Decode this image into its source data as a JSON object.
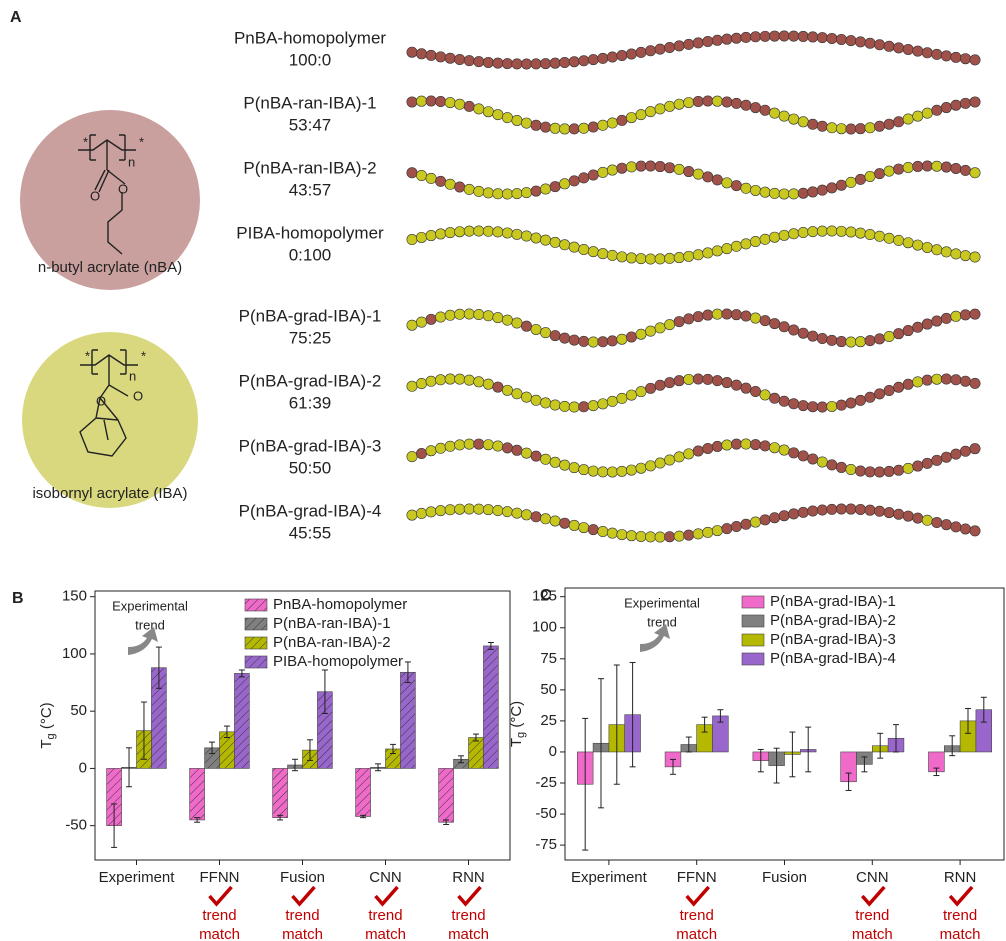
{
  "panel_a": {
    "panel_label": "A",
    "monomers": [
      {
        "name": "n-butyl acrylate (nBA)",
        "end_label": "*",
        "repeat_label": "n",
        "atoms": [
          "O",
          "O"
        ]
      },
      {
        "name": "isobornyl acrylate (IBA)",
        "end_label": "*",
        "repeat_label": "n",
        "atoms": [
          "O",
          "O"
        ]
      }
    ],
    "chains": [
      {
        "name": "PnBA-homopolymer",
        "ratio": "100:0"
      },
      {
        "name": "P(nBA-ran-IBA)-1",
        "ratio": "53:47"
      },
      {
        "name": "P(nBA-ran-IBA)-2",
        "ratio": "43:57"
      },
      {
        "name": "PIBA-homopolymer",
        "ratio": "0:100"
      },
      {
        "name": "P(nBA-grad-IBA)-1",
        "ratio": "75:25"
      },
      {
        "name": "P(nBA-grad-IBA)-2",
        "ratio": "61:39"
      },
      {
        "name": "P(nBA-grad-IBA)-3",
        "ratio": "50:50"
      },
      {
        "name": "P(nBA-grad-IBA)-4",
        "ratio": "45:55"
      }
    ]
  },
  "chart_data": [
    {
      "type": "bar",
      "panel_label": "B",
      "hatch": true,
      "legend": "upper right",
      "ylabel": {
        "main": "T",
        "sub": "g",
        "unit": " (°C)"
      },
      "annotation": [
        "Experimental",
        "trend"
      ],
      "categories": [
        "Experiment",
        "FFNN",
        "Fusion",
        "CNN",
        "RNN"
      ],
      "trend_labels": [
        null,
        [
          "trend",
          "match"
        ],
        [
          "trend",
          "match"
        ],
        [
          "trend",
          "match"
        ],
        [
          "trend",
          "match"
        ]
      ],
      "ylim": [
        -80,
        155
      ],
      "yticks": [
        -50,
        0,
        50,
        100,
        150
      ],
      "series": [
        {
          "name": "PnBA-homopolymer",
          "color": "#f06ac9",
          "values": [
            -50,
            -45,
            -43,
            -42,
            -47
          ],
          "errors": [
            19,
            2,
            2,
            1,
            2
          ]
        },
        {
          "name": "P(nBA-ran-IBA)-1",
          "color": "#808080",
          "values": [
            1,
            18,
            3,
            1,
            8
          ],
          "errors": [
            17,
            5,
            5,
            3,
            3
          ]
        },
        {
          "name": "P(nBA-ran-IBA)-2",
          "color": "#b5b800",
          "values": [
            33,
            32,
            16,
            17,
            27
          ],
          "errors": [
            25,
            5,
            9,
            4,
            3
          ]
        },
        {
          "name": "PIBA-homopolymer",
          "color": "#9966cc",
          "values": [
            88,
            83,
            67,
            84,
            107
          ],
          "errors": [
            18,
            3,
            19,
            9,
            3
          ]
        }
      ]
    },
    {
      "type": "bar",
      "panel_label": "C",
      "hatch": false,
      "legend": "upper right",
      "ylabel": {
        "main": "T",
        "sub": "g",
        "unit": " (°C)"
      },
      "annotation": [
        "Experimental",
        "trend"
      ],
      "categories": [
        "Experiment",
        "FFNN",
        "Fusion",
        "CNN",
        "RNN"
      ],
      "trend_labels": [
        null,
        [
          "trend",
          "match"
        ],
        null,
        [
          "trend",
          "match"
        ],
        [
          "trend",
          "match"
        ]
      ],
      "ylim": [
        -87,
        132
      ],
      "yticks": [
        -75,
        -50,
        -25,
        0,
        25,
        50,
        75,
        100,
        125
      ],
      "series": [
        {
          "name": "P(nBA-grad-IBA)-1",
          "color": "#f06ac9",
          "values": [
            -26,
            -12,
            -7,
            -24,
            -16
          ],
          "errors": [
            53,
            6,
            9,
            7,
            3
          ]
        },
        {
          "name": "P(nBA-grad-IBA)-2",
          "color": "#808080",
          "values": [
            7,
            6,
            -11,
            -10,
            5
          ],
          "errors": [
            52,
            6,
            14,
            6,
            8
          ]
        },
        {
          "name": "P(nBA-grad-IBA)-3",
          "color": "#b5b800",
          "values": [
            22,
            22,
            -2,
            5,
            25
          ],
          "errors": [
            48,
            6,
            18,
            10,
            10
          ]
        },
        {
          "name": "P(nBA-grad-IBA)-4",
          "color": "#9966cc",
          "values": [
            30,
            29,
            2,
            11,
            34
          ],
          "errors": [
            42,
            5,
            18,
            11,
            10
          ]
        }
      ]
    }
  ]
}
